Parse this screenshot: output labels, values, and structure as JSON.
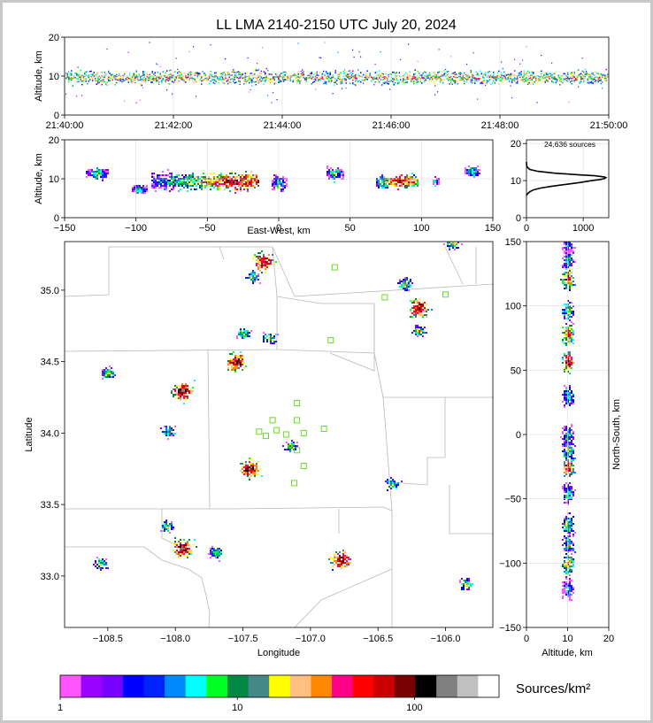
{
  "title": "LL LMA 2140-2150 UTC July 20, 2024",
  "colorbar": {
    "units": "Sources/km²",
    "colors": [
      "#ff55ff",
      "#9900ff",
      "#7700ff",
      "#0000ff",
      "#0022ff",
      "#0088ff",
      "#00ffff",
      "#00ff22",
      "#008844",
      "#448888",
      "#ffff00",
      "#ffc080",
      "#ff8800",
      "#ff0088",
      "#ff0000",
      "#cc0000",
      "#770000",
      "#000000",
      "#808080",
      "#c0c0c0",
      "#ffffff"
    ],
    "tick_labels": [
      "1",
      "10",
      "100"
    ],
    "range": [
      1,
      300
    ],
    "scale": "log"
  },
  "chart_data": [
    {
      "id": "time-height",
      "type": "scatter",
      "ylabel": "Altitude, km",
      "xticks": [
        "21:40:00",
        "21:42:00",
        "21:44:00",
        "21:46:00",
        "21:48:00",
        "21:50:00"
      ],
      "yticks": [
        "0",
        "10",
        "20"
      ],
      "xlim": [
        "21:40:00",
        "21:50:00"
      ],
      "ylim": [
        0,
        20
      ],
      "note_series": "lightning sources vs time; main band 7-12 km"
    },
    {
      "id": "ew-height",
      "type": "heatmap",
      "xlabel": "East-West, km",
      "ylabel": "Altitude, km",
      "xticks": [
        "−150",
        "−100",
        "−50",
        "0",
        "50",
        "100",
        "150"
      ],
      "yticks": [
        "0",
        "10",
        "20"
      ],
      "xlim": [
        -150,
        150
      ],
      "ylim": [
        0,
        20
      ],
      "clusters": [
        {
          "x": [
            -135,
            -120
          ],
          "z": [
            9,
            14
          ]
        },
        {
          "x": [
            -103,
            -93
          ],
          "z": [
            6,
            9
          ]
        },
        {
          "x": [
            -90,
            -15
          ],
          "z": [
            6,
            13
          ],
          "peak_x": -28
        },
        {
          "x": [
            -5,
            5
          ],
          "z": [
            6,
            12
          ]
        },
        {
          "x": [
            33,
            45
          ],
          "z": [
            9,
            14
          ]
        },
        {
          "x": [
            68,
            97
          ],
          "z": [
            7,
            12
          ],
          "peak_x": 85
        },
        {
          "x": [
            107,
            112
          ],
          "z": [
            8,
            11
          ]
        },
        {
          "x": [
            130,
            140
          ],
          "z": [
            10,
            14
          ]
        }
      ]
    },
    {
      "id": "altitude-histogram",
      "type": "line",
      "annotation": "24,636 sources",
      "xticks": [
        "0",
        "1000"
      ],
      "yticks": [
        "0",
        "10",
        "20"
      ],
      "xlim": [
        0,
        1450
      ],
      "ylim": [
        0,
        21
      ],
      "x": [
        0,
        20,
        60,
        120,
        250,
        450,
        700,
        950,
        1150,
        1300,
        1380,
        1400,
        1370,
        1200,
        900,
        500,
        200,
        60,
        20,
        5,
        0
      ],
      "y": [
        6,
        6.5,
        7,
        7.5,
        8,
        8.5,
        9,
        9.5,
        10,
        10.3,
        10.6,
        10.8,
        11,
        11.3,
        11.6,
        12,
        12.5,
        13,
        13.5,
        14,
        15
      ]
    },
    {
      "id": "plan-view",
      "type": "heatmap",
      "xlabel": "Longitude",
      "ylabel": "Latitude",
      "xticks": [
        "−108.5",
        "−108.0",
        "−107.5",
        "−107.0",
        "−106.5",
        "−106.0"
      ],
      "yticks": [
        "33.0",
        "33.5",
        "34.0",
        "34.5",
        "35.0"
      ],
      "xlim": [
        -108.82,
        -105.65
      ],
      "ylim": [
        32.64,
        35.34
      ],
      "stations": [
        [
          -106.82,
          35.16
        ],
        [
          -106.45,
          34.95
        ],
        [
          -106.0,
          34.97
        ],
        [
          -106.85,
          34.65
        ],
        [
          -107.1,
          34.21
        ],
        [
          -107.1,
          34.09
        ],
        [
          -107.28,
          34.09
        ],
        [
          -107.25,
          34.02
        ],
        [
          -107.38,
          34.01
        ],
        [
          -107.33,
          33.98
        ],
        [
          -107.18,
          33.99
        ],
        [
          -107.05,
          34.0
        ],
        [
          -106.9,
          34.03
        ],
        [
          -107.1,
          33.88
        ],
        [
          -107.05,
          33.77
        ],
        [
          -107.12,
          33.65
        ]
      ],
      "storms": [
        {
          "lon": -107.35,
          "lat": 35.2
        },
        {
          "lon": -107.43,
          "lat": 35.1
        },
        {
          "lon": -106.3,
          "lat": 35.05
        },
        {
          "lon": -106.2,
          "lat": 34.88
        },
        {
          "lon": -106.2,
          "lat": 34.72
        },
        {
          "lon": -107.5,
          "lat": 34.7
        },
        {
          "lon": -107.55,
          "lat": 34.5
        },
        {
          "lon": -107.3,
          "lat": 34.67
        },
        {
          "lon": -108.5,
          "lat": 34.42
        },
        {
          "lon": -107.95,
          "lat": 34.3
        },
        {
          "lon": -108.05,
          "lat": 34.02
        },
        {
          "lon": -107.15,
          "lat": 33.91
        },
        {
          "lon": -107.45,
          "lat": 33.75
        },
        {
          "lon": -106.4,
          "lat": 33.65
        },
        {
          "lon": -108.07,
          "lat": 33.35
        },
        {
          "lon": -107.95,
          "lat": 33.2
        },
        {
          "lon": -107.7,
          "lat": 33.17
        },
        {
          "lon": -108.55,
          "lat": 33.09
        },
        {
          "lon": -106.78,
          "lat": 33.12
        },
        {
          "lon": -105.85,
          "lat": 32.95
        },
        {
          "lon": -105.95,
          "lat": 35.33
        }
      ]
    },
    {
      "id": "ns-height",
      "type": "heatmap",
      "xlabel": "Altitude, km",
      "ylabel": "North-South, km",
      "xticks": [
        "0",
        "10",
        "20"
      ],
      "yticks": [
        "−150",
        "−100",
        "−50",
        "0",
        "50",
        "100",
        "150"
      ],
      "xlim": [
        0,
        20
      ],
      "ylim": [
        -150,
        150
      ]
    }
  ]
}
